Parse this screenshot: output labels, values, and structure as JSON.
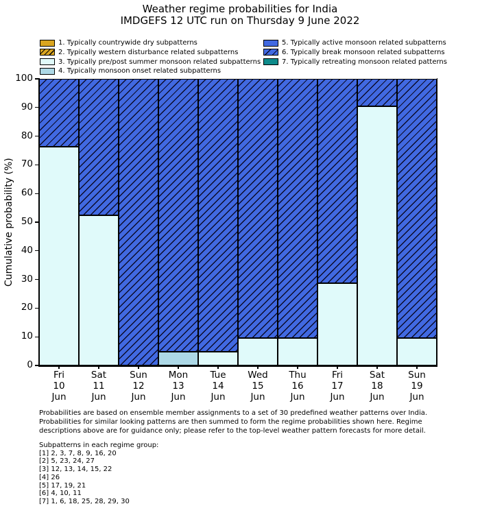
{
  "title": "Weather regime probabilities for India",
  "subtitle": "IMDGEFS 12 UTC run on Thursday 9 June 2022",
  "legend": {
    "items": [
      {
        "label": "1. Typically countrywide dry subpatterns",
        "style": "r1",
        "column": 0
      },
      {
        "label": "2. Typically western disturbance related subpatterns",
        "style": "r2",
        "column": 0
      },
      {
        "label": "3. Typically pre/post summer monsoon related subpatterns",
        "style": "r3",
        "column": 0
      },
      {
        "label": "4. Typically monsoon onset related subpatterns",
        "style": "r4",
        "column": 0
      },
      {
        "label": "5. Typically active monsoon related subpatterns",
        "style": "r5",
        "column": 1
      },
      {
        "label": "6. Typically break monsoon related subpatterns",
        "style": "r6",
        "column": 1
      },
      {
        "label": "7. Typically retreating monsoon related patterns",
        "style": "r7",
        "column": 1
      }
    ]
  },
  "chart_data": {
    "type": "bar",
    "stacked": true,
    "title": "Weather regime probabilities for India",
    "subtitle": "IMDGEFS 12 UTC run on Thursday 9 June 2022",
    "xlabel": "",
    "ylabel": "Cumulative probability (%)",
    "ylim": [
      0,
      100
    ],
    "y_ticks": [
      0,
      10,
      20,
      30,
      40,
      50,
      60,
      70,
      80,
      90,
      100
    ],
    "grid": false,
    "legend_position": "above-plot, two columns",
    "categories": [
      [
        "Fri",
        "10",
        "Jun"
      ],
      [
        "Sat",
        "11",
        "Jun"
      ],
      [
        "Sun",
        "12",
        "Jun"
      ],
      [
        "Mon",
        "13",
        "Jun"
      ],
      [
        "Tue",
        "14",
        "Jun"
      ],
      [
        "Wed",
        "15",
        "Jun"
      ],
      [
        "Thu",
        "16",
        "Jun"
      ],
      [
        "Fri",
        "17",
        "Jun"
      ],
      [
        "Sat",
        "18",
        "Jun"
      ],
      [
        "Sun",
        "19",
        "Jun"
      ]
    ],
    "series": [
      {
        "name": "1. Typically countrywide dry subpatterns",
        "style": "r1",
        "hatch": "",
        "color": "#DAA520",
        "values": [
          0,
          0,
          0,
          0,
          0,
          0,
          0,
          0,
          0,
          0
        ]
      },
      {
        "name": "2. Typically western disturbance related subpatterns",
        "style": "r2",
        "hatch": "///",
        "color": "#DAA520",
        "values": [
          0,
          0,
          0,
          0,
          0,
          0,
          0,
          0,
          0,
          0
        ]
      },
      {
        "name": "3. Typically pre/post summer monsoon related subpatterns",
        "style": "r3",
        "hatch": "",
        "color": "#E0FAFA",
        "values": [
          76.2,
          52.4,
          0,
          0,
          4.8,
          9.5,
          9.5,
          28.6,
          90.5,
          9.5
        ]
      },
      {
        "name": "4. Typically monsoon onset related subpatterns",
        "style": "r4",
        "hatch": "",
        "color": "#ADD8E6",
        "values": [
          0,
          0,
          0,
          4.8,
          0,
          0,
          0,
          0,
          0,
          0
        ]
      },
      {
        "name": "5. Typically active monsoon related subpatterns",
        "style": "r5",
        "hatch": "",
        "color": "#4169E1",
        "values": [
          0,
          0,
          0,
          0,
          0,
          0,
          0,
          0,
          0,
          0
        ]
      },
      {
        "name": "6. Typically break monsoon related subpatterns",
        "style": "r6",
        "hatch": "///",
        "color": "#4169E1",
        "values": [
          23.8,
          47.6,
          100,
          95.2,
          95.2,
          90.5,
          90.5,
          71.4,
          9.5,
          90.5
        ]
      },
      {
        "name": "7. Typically retreating monsoon related patterns",
        "style": "r7",
        "hatch": "",
        "color": "#0E8B8B",
        "values": [
          0,
          0,
          0,
          0,
          0,
          0,
          0,
          0,
          0,
          0
        ]
      }
    ],
    "bar_edge_color": "#000000"
  },
  "footer": {
    "lines": [
      "Probabilities are based on ensemble member assignments to a set of 30 predefined weather patterns over India.",
      "Probabilities for similar looking patterns are then summed to form the regime probabilities shown here. Regime",
      "descriptions above are for guidance only; please refer to the top-level weather pattern forecasts for more detail."
    ]
  },
  "subpatterns": {
    "heading": "Subpatterns in each regime group:",
    "lines": [
      "[1] 2, 3, 7, 8, 9, 16, 20",
      "[2] 5, 23, 24, 27",
      "[3] 12, 13, 14, 15, 22",
      "[4] 26",
      "[5] 17, 19, 21",
      "[6] 4, 10, 11",
      "[7] 1, 6, 18, 25, 28, 29, 30"
    ]
  }
}
